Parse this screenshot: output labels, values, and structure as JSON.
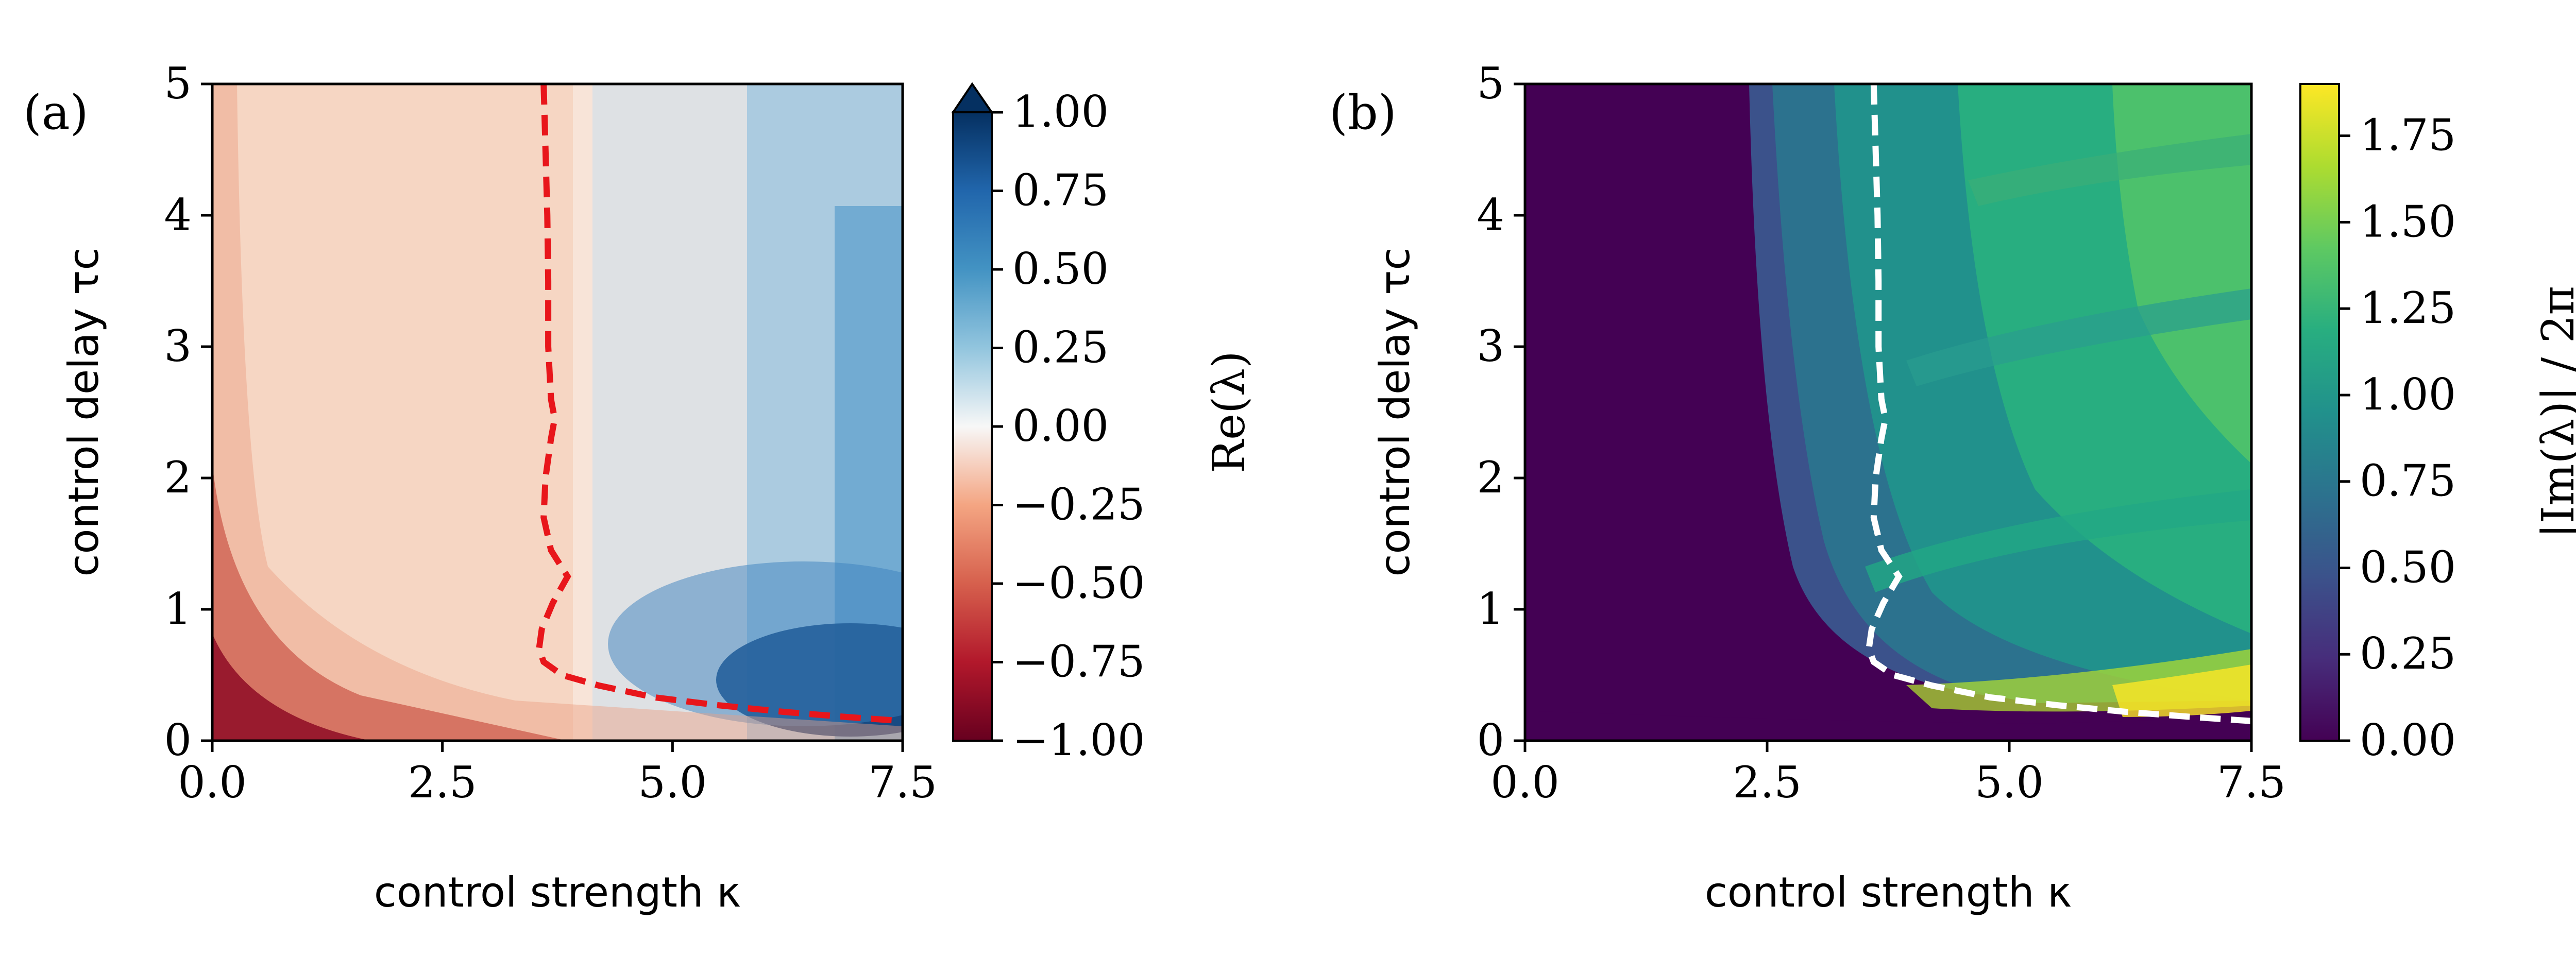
{
  "chart_data": [
    {
      "panel_label": "(a)",
      "type": "heatmap",
      "xlabel": "control strength κ",
      "ylabel": "control delay τc",
      "xlim": [
        0,
        7.5
      ],
      "ylim": [
        0,
        5
      ],
      "xticks": [
        "0.0",
        "2.5",
        "5.0",
        "7.5"
      ],
      "xtick_values": [
        0,
        2.5,
        5,
        7.5
      ],
      "yticks": [
        "0",
        "1",
        "2",
        "3",
        "4",
        "5"
      ],
      "ytick_values": [
        0,
        1,
        2,
        3,
        4,
        5
      ],
      "colormap": "RdBu",
      "colorbar": {
        "label": "Re(λ)",
        "range": [
          -1.0,
          1.0
        ],
        "extend": "max",
        "ticks": [
          "−1.00",
          "−0.75",
          "−0.50",
          "−0.25",
          "0.00",
          "0.25",
          "0.50",
          "0.75",
          "1.00"
        ],
        "tick_values": [
          -1,
          -0.75,
          -0.5,
          -0.25,
          0,
          0.25,
          0.5,
          0.75,
          1
        ]
      },
      "contour": {
        "color": "#e8161b",
        "style": "dashed",
        "points": [
          [
            3.6,
            5.0
          ],
          [
            3.62,
            4.5
          ],
          [
            3.64,
            4.0
          ],
          [
            3.65,
            3.5
          ],
          [
            3.65,
            3.0
          ],
          [
            3.68,
            2.6
          ],
          [
            3.72,
            2.45
          ],
          [
            3.68,
            2.3
          ],
          [
            3.62,
            2.0
          ],
          [
            3.6,
            1.7
          ],
          [
            3.68,
            1.45
          ],
          [
            3.86,
            1.25
          ],
          [
            3.7,
            1.05
          ],
          [
            3.58,
            0.85
          ],
          [
            3.55,
            0.7
          ],
          [
            3.6,
            0.6
          ],
          [
            3.8,
            0.5
          ],
          [
            4.2,
            0.42
          ],
          [
            4.8,
            0.33
          ],
          [
            5.5,
            0.27
          ],
          [
            6.2,
            0.22
          ],
          [
            6.9,
            0.18
          ],
          [
            7.5,
            0.15
          ]
        ]
      }
    },
    {
      "panel_label": "(b)",
      "type": "heatmap",
      "xlabel": "control strength κ",
      "ylabel": "control delay τc",
      "xlim": [
        0,
        7.5
      ],
      "ylim": [
        0,
        5
      ],
      "xticks": [
        "0.0",
        "2.5",
        "5.0",
        "7.5"
      ],
      "xtick_values": [
        0,
        2.5,
        5,
        7.5
      ],
      "yticks": [
        "0",
        "1",
        "2",
        "3",
        "4",
        "5"
      ],
      "ytick_values": [
        0,
        1,
        2,
        3,
        4,
        5
      ],
      "colormap": "viridis",
      "colorbar": {
        "label": "|Im(λ)| / 2π",
        "range": [
          0.0,
          1.9
        ],
        "ticks": [
          "0.00",
          "0.25",
          "0.50",
          "0.75",
          "1.00",
          "1.25",
          "1.50",
          "1.75"
        ],
        "tick_values": [
          0,
          0.25,
          0.5,
          0.75,
          1,
          1.25,
          1.5,
          1.75
        ]
      },
      "contour": {
        "color": "#ffffff",
        "style": "dashed",
        "points": [
          [
            3.6,
            5.0
          ],
          [
            3.62,
            4.5
          ],
          [
            3.64,
            4.0
          ],
          [
            3.65,
            3.5
          ],
          [
            3.65,
            3.0
          ],
          [
            3.68,
            2.6
          ],
          [
            3.72,
            2.45
          ],
          [
            3.68,
            2.3
          ],
          [
            3.62,
            2.0
          ],
          [
            3.6,
            1.7
          ],
          [
            3.68,
            1.45
          ],
          [
            3.86,
            1.25
          ],
          [
            3.7,
            1.05
          ],
          [
            3.58,
            0.85
          ],
          [
            3.55,
            0.7
          ],
          [
            3.6,
            0.6
          ],
          [
            3.8,
            0.5
          ],
          [
            4.2,
            0.42
          ],
          [
            4.8,
            0.33
          ],
          [
            5.5,
            0.27
          ],
          [
            6.2,
            0.22
          ],
          [
            6.9,
            0.18
          ],
          [
            7.5,
            0.15
          ]
        ]
      }
    }
  ]
}
